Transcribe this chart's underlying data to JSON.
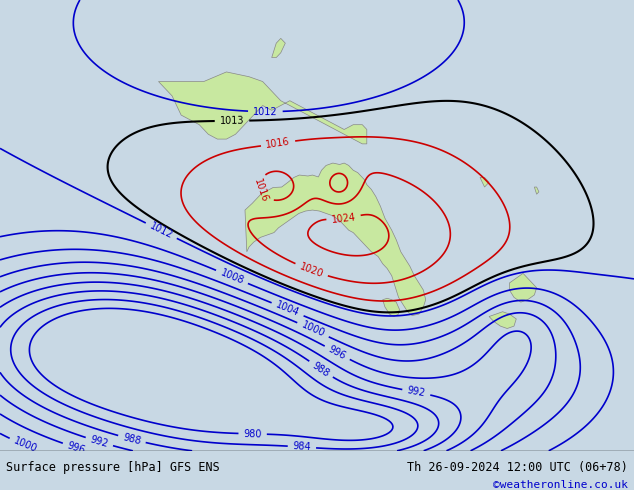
{
  "title_left": "Surface pressure [hPa] GFS ENS",
  "title_right": "Th 26-09-2024 12:00 UTC (06+78)",
  "credit": "©weatheronline.co.uk",
  "background_color": "#d0d8e0",
  "land_color": "#c8e8a0",
  "figsize": [
    6.34,
    4.9
  ],
  "dpi": 100,
  "red_contour_color": "#cc0000",
  "blue_contour_color": "#0000cc",
  "black_contour_color": "#000000",
  "text_color_left": "#000000",
  "text_color_right": "#000000",
  "credit_color": "#0000cc"
}
